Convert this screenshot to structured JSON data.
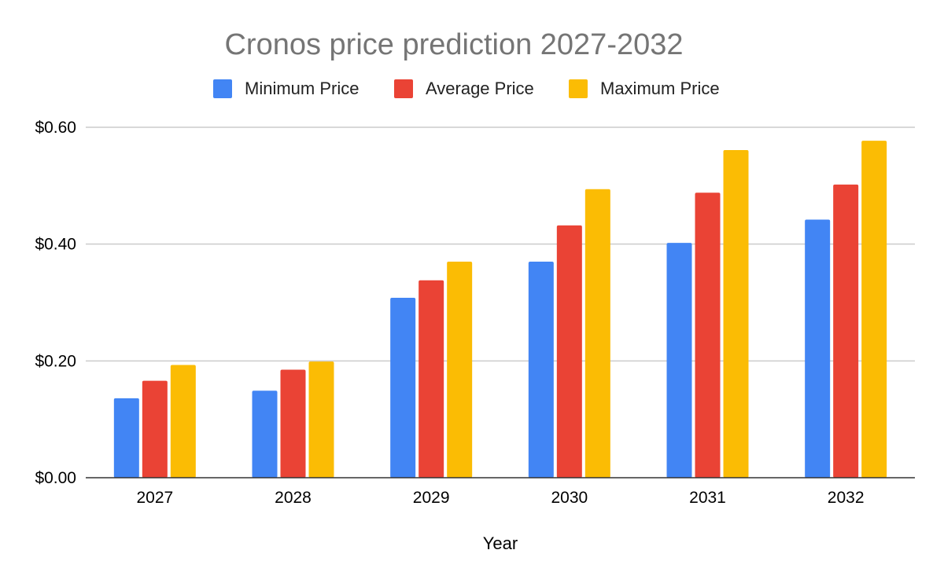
{
  "chart_data": {
    "type": "bar",
    "title": "Cronos price prediction 2027-2032",
    "xlabel": "Year",
    "ylabel": "",
    "categories": [
      "2027",
      "2028",
      "2029",
      "2030",
      "2031",
      "2032"
    ],
    "series": [
      {
        "name": "Minimum Price",
        "color": "#4285F4",
        "values": [
          0.136,
          0.149,
          0.308,
          0.37,
          0.402,
          0.442
        ]
      },
      {
        "name": "Average Price",
        "color": "#EA4335",
        "values": [
          0.166,
          0.185,
          0.338,
          0.432,
          0.488,
          0.502
        ]
      },
      {
        "name": "Maximum Price",
        "color": "#FBBC04",
        "values": [
          0.193,
          0.199,
          0.37,
          0.494,
          0.561,
          0.577
        ]
      }
    ],
    "ylim": [
      0,
      0.6
    ],
    "yticks": [
      0,
      0.2,
      0.4,
      0.6
    ],
    "ytick_labels": [
      "$0.00",
      "$0.20",
      "$0.40",
      "$0.60"
    ],
    "grid": true,
    "legend_position": "top"
  }
}
